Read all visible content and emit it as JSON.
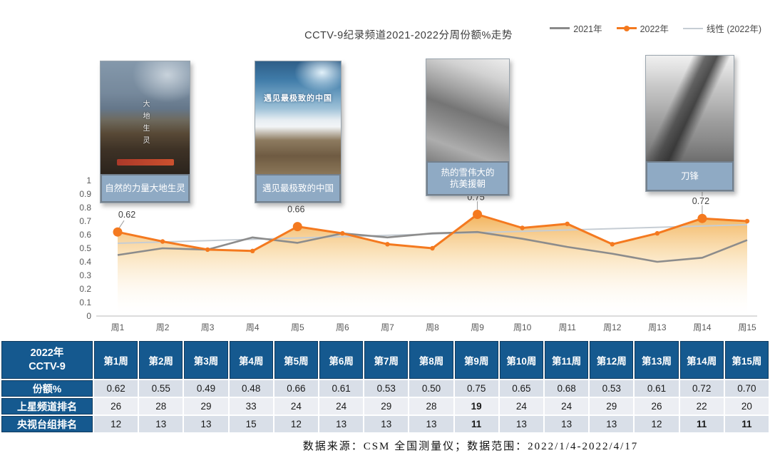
{
  "title": "CCTV-9纪录频道2021-2022分周份额%走势",
  "legend": {
    "items": [
      {
        "label": "2021年",
        "color": "#8a8a8a"
      },
      {
        "label": "2022年",
        "color": "#f4791f"
      },
      {
        "label": "线性 (2022年)",
        "color": "#c6cdd4"
      }
    ]
  },
  "chart_data": {
    "type": "line",
    "title": "CCTV-9纪录频道2021-2022分周份额%走势",
    "x_labels": [
      "周1",
      "周2",
      "周3",
      "周4",
      "周5",
      "周6",
      "周7",
      "周8",
      "周9",
      "周10",
      "周11",
      "周12",
      "周13",
      "周14",
      "周15"
    ],
    "ylim": [
      0,
      1
    ],
    "y_ticks": [
      "1",
      "0.9",
      "0.8",
      "0.7",
      "0.6",
      "0.5",
      "0.4",
      "0.3",
      "0.2",
      "0.1",
      "0"
    ],
    "grid": "off",
    "legend_position": "top-right",
    "series": [
      {
        "name": "2021年",
        "color": "#8c8c8c",
        "values": [
          0.45,
          0.5,
          0.49,
          0.58,
          0.54,
          0.61,
          0.58,
          0.61,
          0.62,
          0.57,
          0.51,
          0.46,
          0.4,
          0.43,
          0.56
        ]
      },
      {
        "name": "2022年",
        "color": "#f4791f",
        "area_fill": true,
        "values": [
          0.62,
          0.55,
          0.49,
          0.48,
          0.66,
          0.61,
          0.53,
          0.5,
          0.75,
          0.65,
          0.68,
          0.53,
          0.61,
          0.72,
          0.7
        ]
      }
    ],
    "trendline": {
      "name": "线性 (2022年)",
      "color": "#c6cdd4",
      "start": 0.537,
      "end": 0.674
    },
    "labeled_points": [
      {
        "index": 0,
        "label": "0.62"
      },
      {
        "index": 4,
        "label": "0.66"
      },
      {
        "index": 8,
        "label": "0.75"
      },
      {
        "index": 13,
        "label": "0.72"
      }
    ]
  },
  "posters": [
    {
      "caption": "自然的力量大地生灵",
      "art_text": "大地生灵"
    },
    {
      "caption": "遇见最极致的中国",
      "art_text": "遇见最极致的中国"
    },
    {
      "caption": "热的雪伟大的\n抗美援朝",
      "art_text": ""
    },
    {
      "caption": "刀锋",
      "art_text": ""
    }
  ],
  "table": {
    "corner": "2022年\nCCTV-9",
    "week_headers": [
      "第1周",
      "第2周",
      "第3周",
      "第4周",
      "第5周",
      "第6周",
      "第7周",
      "第8周",
      "第9周",
      "第10周",
      "第11周",
      "第12周",
      "第13周",
      "第14周",
      "第15周"
    ],
    "rows": [
      {
        "label": "份额%",
        "values": [
          "0.62",
          "0.55",
          "0.49",
          "0.48",
          "0.66",
          "0.61",
          "0.53",
          "0.50",
          "0.75",
          "0.65",
          "0.68",
          "0.53",
          "0.61",
          "0.72",
          "0.70"
        ],
        "bold": []
      },
      {
        "label": "上星频道排名",
        "values": [
          "26",
          "28",
          "29",
          "33",
          "24",
          "24",
          "29",
          "28",
          "19",
          "24",
          "24",
          "29",
          "26",
          "22",
          "20"
        ],
        "bold": [
          8
        ]
      },
      {
        "label": "央视台组排名",
        "values": [
          "12",
          "13",
          "13",
          "15",
          "12",
          "13",
          "13",
          "13",
          "11",
          "13",
          "13",
          "13",
          "12",
          "11",
          "11"
        ],
        "bold": [
          8,
          13,
          14
        ]
      }
    ]
  },
  "footer": "数据来源：CSM 全国测量仪；数据范围：2022/1/4-2022/4/17"
}
